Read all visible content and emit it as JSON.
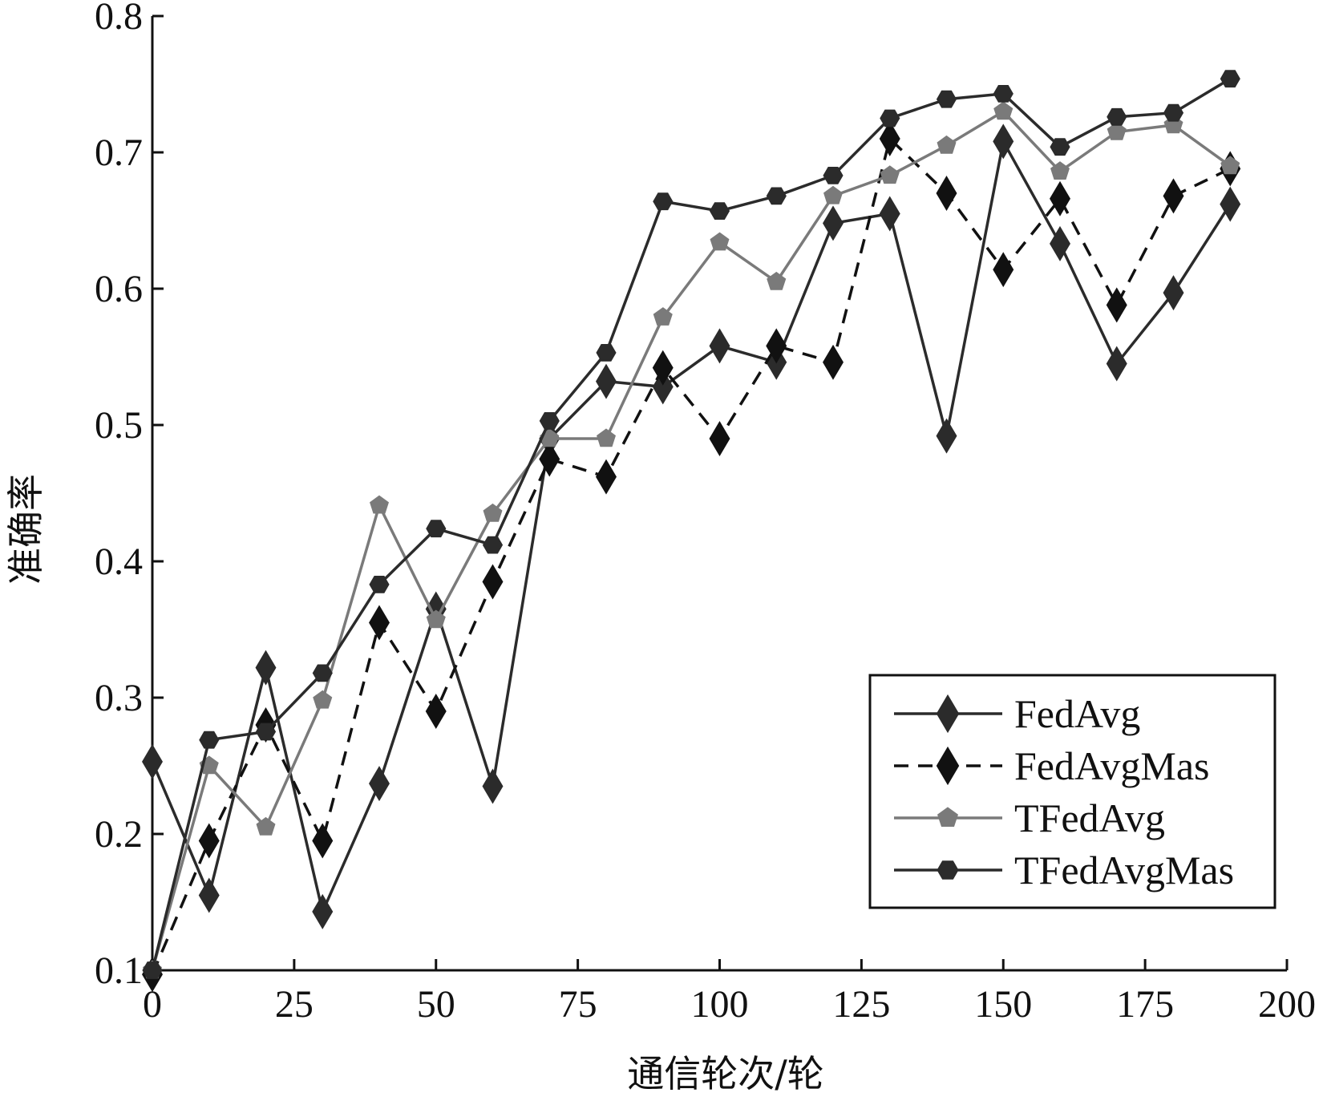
{
  "chart_data": {
    "type": "line",
    "xlabel": "通信轮次/轮",
    "ylabel": "准确率",
    "xlim": [
      0,
      200
    ],
    "ylim": [
      0.1,
      0.8
    ],
    "xticks": [
      0,
      25,
      50,
      75,
      100,
      125,
      150,
      175,
      200
    ],
    "yticks": [
      0.1,
      0.2,
      0.3,
      0.4,
      0.5,
      0.6,
      0.7,
      0.8
    ],
    "xtick_labels": [
      "0",
      "25",
      "50",
      "75",
      "100",
      "125",
      "150",
      "175",
      "200"
    ],
    "ytick_labels": [
      "0.1",
      "0.2",
      "0.3",
      "0.4",
      "0.5",
      "0.6",
      "0.7",
      "0.8"
    ],
    "grid": false,
    "legend_position": "bottom-right",
    "x": [
      0,
      10,
      20,
      30,
      40,
      50,
      60,
      70,
      80,
      90,
      100,
      110,
      120,
      130,
      140,
      150,
      160,
      170,
      180,
      190
    ],
    "series": [
      {
        "name": "FedAvg",
        "color": "#2b2b2b",
        "dash": "solid",
        "marker": "diamond",
        "values": [
          0.253,
          0.155,
          0.322,
          0.143,
          0.237,
          0.365,
          0.235,
          0.49,
          0.532,
          0.528,
          0.558,
          0.546,
          0.648,
          0.655,
          0.492,
          0.708,
          0.633,
          0.545,
          0.597,
          0.662
        ]
      },
      {
        "name": "FedAvgMas",
        "color": "#111111",
        "dash": "dashed",
        "marker": "diamond",
        "values": [
          0.097,
          0.195,
          0.28,
          0.195,
          0.355,
          0.29,
          0.385,
          0.475,
          0.462,
          0.542,
          0.49,
          0.558,
          0.546,
          0.71,
          0.67,
          0.614,
          0.666,
          0.588,
          0.668,
          0.688
        ]
      },
      {
        "name": "TFedAvg",
        "color": "#7a7a7a",
        "dash": "solid",
        "marker": "pentagon",
        "values": [
          0.1,
          0.25,
          0.205,
          0.298,
          0.441,
          0.357,
          0.435,
          0.49,
          0.49,
          0.579,
          0.634,
          0.605,
          0.668,
          0.683,
          0.705,
          0.73,
          0.686,
          0.715,
          0.72,
          0.69
        ]
      },
      {
        "name": "TFedAvgMas",
        "color": "#2b2b2b",
        "dash": "solid",
        "marker": "hexagon",
        "values": [
          0.1,
          0.269,
          0.275,
          0.318,
          0.383,
          0.424,
          0.412,
          0.503,
          0.553,
          0.664,
          0.657,
          0.668,
          0.683,
          0.725,
          0.739,
          0.743,
          0.704,
          0.726,
          0.729,
          0.754
        ]
      }
    ]
  }
}
